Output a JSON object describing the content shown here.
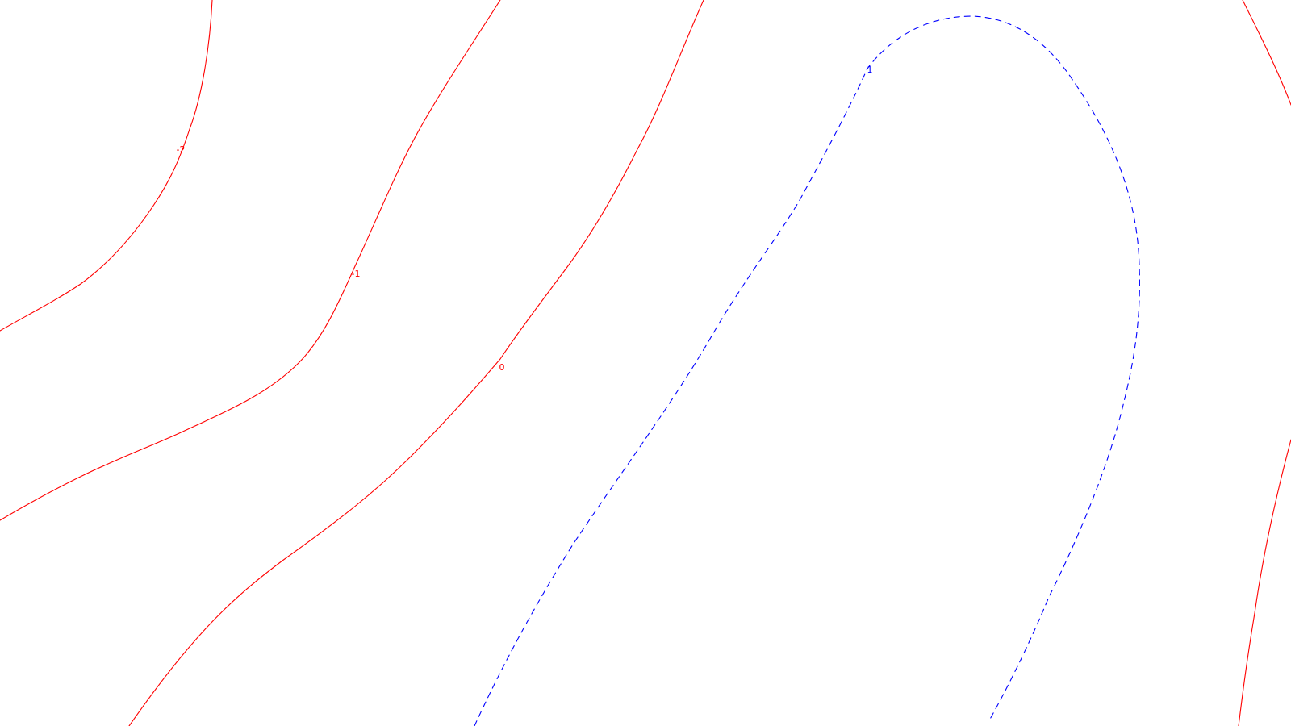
{
  "chart_data": {
    "type": "contour",
    "title": "",
    "xlabel": "",
    "ylabel": "",
    "grid": false,
    "legend": "none",
    "colors": {
      "positive": "#ff0000",
      "negative": "#0000ff"
    },
    "contours": [
      {
        "level": "-2",
        "color": "#ff0000",
        "style": "solid",
        "label_text": "-2"
      },
      {
        "level": "-1",
        "color": "#ff0000",
        "style": "solid",
        "label_text": "-1"
      },
      {
        "level": "0",
        "color": "#ff0000",
        "style": "solid",
        "label_text": "0"
      },
      {
        "level": "1",
        "color": "#0000ff",
        "style": "dashed",
        "label_text": "1"
      },
      {
        "level": "-1",
        "color": "#ff0000",
        "style": "solid",
        "label_text": ""
      }
    ]
  }
}
